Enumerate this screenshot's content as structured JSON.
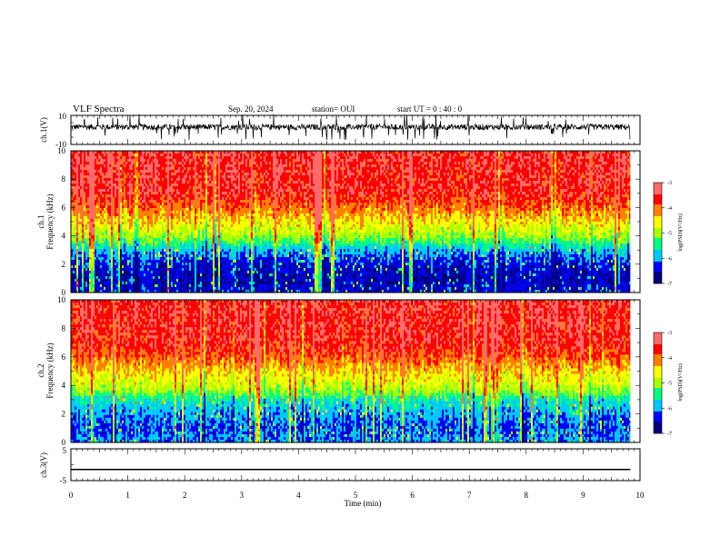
{
  "header": {
    "title": "VLF Spectra",
    "date": "Sep. 20, 2024",
    "station": "station= OUI",
    "start": "start  UT =   0 : 40 : 0"
  },
  "colors": {
    "spectrum": [
      "#00007a",
      "#0000ff",
      "#00c8ff",
      "#00ff80",
      "#aaff00",
      "#ffff00",
      "#ff8000",
      "#ff0000",
      "#ff6a6a"
    ],
    "trace": "#000000"
  },
  "chart_data": [
    {
      "type": "line",
      "panel": "ch1-waveform",
      "ylabel": "ch.1(V)",
      "ylim": [
        -10,
        10
      ],
      "yticks": [
        "10",
        "-10"
      ],
      "baseline": 2,
      "description_values": {
        "typical_low": 0,
        "typical_high": 4
      }
    },
    {
      "type": "heatmap",
      "panel": "ch1-spectrogram",
      "ylabel": "ch.1\nFrequency (kHz)",
      "ylabel_lines": [
        "ch.1",
        "Frequency (kHz)"
      ],
      "ylim": [
        0,
        10
      ],
      "yticks": [
        "0",
        "2",
        "4",
        "6",
        "8",
        "10"
      ],
      "x_end_min": 9.83,
      "band_profile": [
        {
          "f": 0.0,
          "level": -6.4
        },
        {
          "f": 1.0,
          "level": -6.6
        },
        {
          "f": 2.0,
          "level": -6.4
        },
        {
          "f": 3.0,
          "level": -5.9
        },
        {
          "f": 3.5,
          "level": -5.4
        },
        {
          "f": 4.0,
          "level": -5.0
        },
        {
          "f": 5.0,
          "level": -4.5
        },
        {
          "f": 6.0,
          "level": -4.0
        },
        {
          "f": 7.0,
          "level": -3.6
        },
        {
          "f": 10.0,
          "level": -3.5
        }
      ],
      "colorbar": {
        "label": "log(PSD)(V²/Hz)",
        "min": -7,
        "max": -3,
        "ticks": [
          "-3",
          "-4",
          "-5",
          "-6",
          "-7"
        ]
      }
    },
    {
      "type": "heatmap",
      "panel": "ch2-spectrogram",
      "ylabel": "ch.2\nFrequency (kHz)",
      "ylabel_lines": [
        "ch.2",
        "Frequency (kHz)"
      ],
      "ylim": [
        0,
        10
      ],
      "yticks": [
        "0",
        "2",
        "4",
        "6",
        "8",
        "10"
      ],
      "x_end_min": 9.83,
      "band_profile": [
        {
          "f": 0.0,
          "level": -6.0
        },
        {
          "f": 1.0,
          "level": -6.2
        },
        {
          "f": 2.0,
          "level": -6.0
        },
        {
          "f": 3.0,
          "level": -5.6
        },
        {
          "f": 3.5,
          "level": -5.1
        },
        {
          "f": 4.0,
          "level": -4.8
        },
        {
          "f": 5.0,
          "level": -4.4
        },
        {
          "f": 6.0,
          "level": -3.9
        },
        {
          "f": 7.0,
          "level": -3.6
        },
        {
          "f": 10.0,
          "level": -3.5
        }
      ],
      "colorbar": {
        "label": "log(PSD)(V²/Hz)",
        "min": -7,
        "max": -3,
        "ticks": [
          "-3",
          "-4",
          "-5",
          "-6",
          "-7"
        ]
      }
    },
    {
      "type": "line",
      "panel": "ch3-waveform",
      "ylabel": "ch.3(V)",
      "ylim": [
        -5,
        5
      ],
      "yticks": [
        "5",
        "-5"
      ],
      "x": [
        0,
        9.83
      ],
      "y": [
        -1.5,
        -1.5
      ]
    }
  ],
  "xaxis": {
    "label": "Time (min)",
    "range": [
      0,
      10
    ],
    "ticks": [
      "0",
      "1",
      "2",
      "3",
      "4",
      "5",
      "6",
      "7",
      "8",
      "9",
      "10"
    ]
  }
}
